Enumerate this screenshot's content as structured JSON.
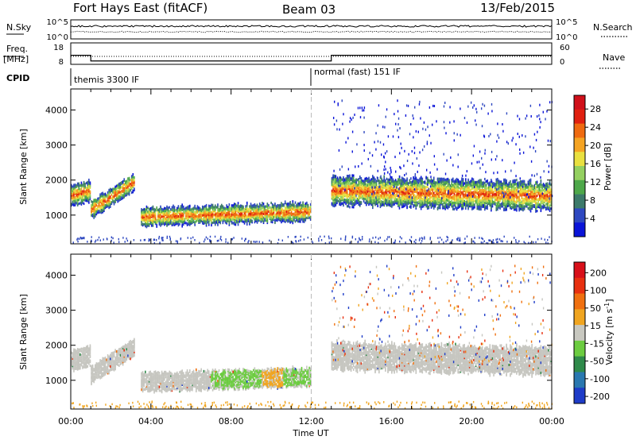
{
  "header": {
    "station": "Fort Hays East (fitACF)",
    "beam": "Beam 03",
    "date": "13/Feb/2015"
  },
  "top_panels": {
    "nsky_label": "N.Sky",
    "nsky_ticks": [
      "10^5",
      "10^0"
    ],
    "nsearch_label": "N.Search",
    "nsearch_ticks": [
      "10^5",
      "10^0"
    ],
    "freq_label_1": "Freq.",
    "freq_label_2": "[MHz]",
    "freq_ticks": [
      "18",
      "8"
    ],
    "nave_label": "Nave",
    "nave_ticks": [
      "60",
      "0"
    ],
    "cpid_label": "CPID",
    "cpid_segments": [
      {
        "label": "themis 3300 IF",
        "start_hour": 0,
        "end_hour": 12
      },
      {
        "label": "normal (fast) 151 IF",
        "start_hour": 12,
        "end_hour": 24
      }
    ],
    "freq_segments": [
      {
        "start_hour": 0,
        "end_hour": 1,
        "freq_mhz": 12.0
      },
      {
        "start_hour": 1,
        "end_hour": 13,
        "freq_mhz": 8.6
      },
      {
        "start_hour": 13,
        "end_hour": 24,
        "freq_mhz": 12.0
      }
    ]
  },
  "chart_data": [
    {
      "type": "heatmap",
      "ylabel": "Slant Range [km]",
      "xlabel": "Time UT",
      "x_ticks": [
        "00:00",
        "04:00",
        "08:00",
        "12:00",
        "16:00",
        "20:00",
        "00:00"
      ],
      "x_range_hours": [
        0,
        24
      ],
      "y_ticks": [
        1000,
        2000,
        3000,
        4000
      ],
      "y_range_km": [
        180,
        4600
      ],
      "colorbar_label": "Power [dB]",
      "colorbar_ticks": [
        4,
        8,
        12,
        16,
        20,
        24,
        28
      ],
      "colorbar_colors": [
        "#0a14d8",
        "#2e48c0",
        "#3c7a6a",
        "#4ea84a",
        "#94d060",
        "#e9e040",
        "#f5a423",
        "#ef6a10",
        "#e02010",
        "#d0101a"
      ],
      "echo_bands": [
        {
          "start_hour": 0.0,
          "end_hour": 1.0,
          "center_km": [
            1550,
            1700
          ],
          "half_width_km": 300
        },
        {
          "start_hour": 1.0,
          "end_hour": 3.2,
          "center_km": [
            1150,
            1950
          ],
          "half_width_km": 260
        },
        {
          "start_hour": 3.5,
          "end_hour": 12.0,
          "center_km": [
            950,
            1100
          ],
          "half_width_km": 280
        },
        {
          "start_hour": 13.0,
          "end_hour": 24.0,
          "center_km": [
            1700,
            1550
          ],
          "half_width_km": 420
        }
      ]
    },
    {
      "type": "heatmap",
      "ylabel": "Slant Range [km]",
      "xlabel": "Time UT",
      "x_ticks": [
        "00:00",
        "04:00",
        "08:00",
        "12:00",
        "16:00",
        "20:00",
        "00:00"
      ],
      "x_range_hours": [
        0,
        24
      ],
      "y_ticks": [
        1000,
        2000,
        3000,
        4000
      ],
      "y_range_km": [
        180,
        4600
      ],
      "colorbar_label": "Velocity [m s^-1]",
      "colorbar_ticks": [
        200,
        100,
        50,
        15,
        -15,
        -50,
        -100,
        -200
      ],
      "colorbar_colors": [
        "#1e3cc8",
        "#2a78b0",
        "#2f8a4a",
        "#6ccc40",
        "#c8c8c0",
        "#f0a520",
        "#f07010",
        "#e83010",
        "#d8101a"
      ],
      "ground_scatter_color": "#c6c6c0",
      "echo_bands": [
        {
          "start_hour": 0.0,
          "end_hour": 1.0,
          "center_km": [
            1550,
            1700
          ],
          "half_width_km": 300
        },
        {
          "start_hour": 1.0,
          "end_hour": 3.2,
          "center_km": [
            1150,
            1950
          ],
          "half_width_km": 260
        },
        {
          "start_hour": 3.5,
          "end_hour": 12.0,
          "center_km": [
            950,
            1100
          ],
          "half_width_km": 280
        },
        {
          "start_hour": 13.0,
          "end_hour": 24.0,
          "center_km": [
            1700,
            1550
          ],
          "half_width_km": 420
        }
      ]
    }
  ]
}
